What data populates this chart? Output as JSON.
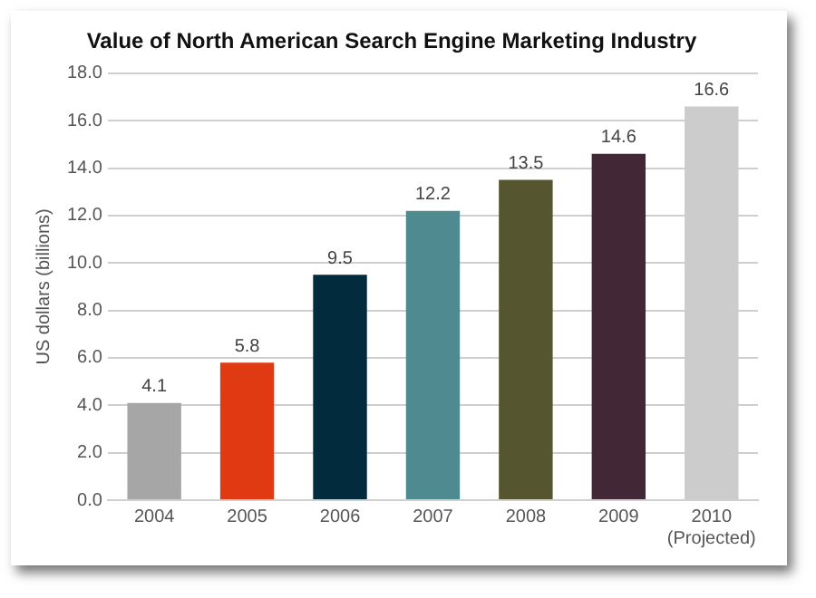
{
  "chart_data": {
    "type": "bar",
    "title": "Value of North American Search Engine Marketing Industry",
    "ylabel": "US dollars (billions)",
    "categories": [
      "2004",
      "2005",
      "2006",
      "2007",
      "2008",
      "2009",
      "2010\n(Projected)"
    ],
    "values": [
      4.1,
      5.8,
      9.5,
      12.2,
      13.5,
      14.6,
      16.6
    ],
    "colors": [
      "#a6a6a6",
      "#e03a12",
      "#022b3e",
      "#508a91",
      "#555630",
      "#422837",
      "#cccccc"
    ],
    "ylim": [
      0,
      18
    ],
    "yticks": [
      {
        "value": 0,
        "label": "0.0"
      },
      {
        "value": 2,
        "label": "2.0"
      },
      {
        "value": 4,
        "label": "4.0"
      },
      {
        "value": 6,
        "label": "6.0"
      },
      {
        "value": 8,
        "label": "8.0"
      },
      {
        "value": 10,
        "label": "10.0"
      },
      {
        "value": 12,
        "label": "12.0"
      },
      {
        "value": 14,
        "label": "14.0"
      },
      {
        "value": 16,
        "label": "16.0"
      },
      {
        "value": 18,
        "label": "18.0"
      }
    ],
    "grid": "y",
    "legend": false,
    "data_labels": true
  }
}
